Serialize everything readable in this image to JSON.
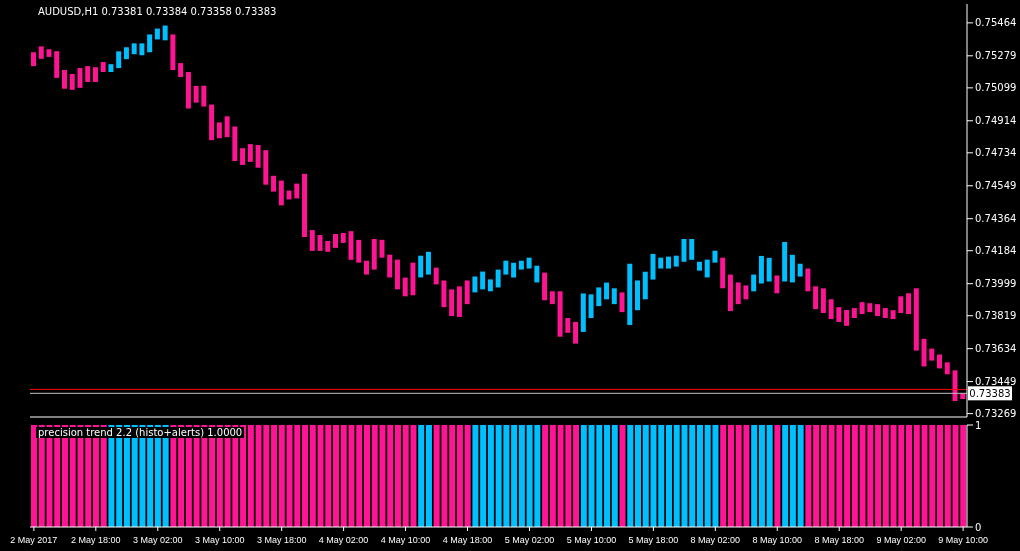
{
  "chart_data": [
    {
      "type": "bar",
      "title": "AUDUSD,H1  0.73381 0.73384 0.73358 0.73383",
      "categories": [
        null,
        null,
        null,
        null,
        null,
        null,
        null,
        null,
        null,
        null,
        null,
        null,
        null,
        null,
        null,
        null,
        null,
        null,
        null,
        null,
        null,
        null,
        null,
        null,
        null,
        null,
        null,
        null,
        null,
        null,
        null,
        null,
        null,
        null,
        null,
        null,
        null,
        null,
        null,
        null,
        null,
        null,
        null,
        null,
        null,
        null,
        null,
        null,
        null,
        null,
        null,
        null,
        null,
        null,
        null,
        null,
        null,
        null,
        null,
        null,
        null,
        null,
        null,
        null,
        null,
        null,
        null,
        null,
        null,
        null,
        null,
        null,
        null,
        null,
        null,
        null,
        null,
        null,
        null,
        null,
        null,
        null,
        null,
        null,
        null,
        null,
        null,
        null,
        null,
        null,
        null,
        null,
        null,
        null,
        null,
        null,
        null,
        null,
        null,
        null,
        null,
        null,
        null,
        null,
        null,
        null,
        null,
        null,
        null,
        null,
        null,
        null,
        null,
        null,
        null,
        null,
        null,
        null,
        null,
        null,
        null
      ],
      "base": [
        0.75221,
        0.75262,
        0.75273,
        0.75155,
        0.75094,
        0.75088,
        0.75099,
        0.75132,
        0.75132,
        0.75188,
        0.75188,
        0.7521,
        0.7526,
        0.75288,
        0.75282,
        0.75299,
        0.75371,
        0.75366,
        0.75199,
        0.7516,
        0.74983,
        0.75016,
        0.74994,
        0.74805,
        0.74816,
        0.74822,
        0.74688,
        0.74666,
        0.74683,
        0.7465,
        0.74555,
        0.74516,
        0.74439,
        0.74472,
        0.74478,
        0.74261,
        0.74183,
        0.74183,
        0.74178,
        0.742,
        0.74228,
        0.74133,
        0.74117,
        0.7405,
        0.74078,
        0.74145,
        0.74034,
        0.73967,
        0.73928,
        0.73934,
        0.74034,
        0.7405,
        0.73995,
        0.73867,
        0.73817,
        0.73812,
        0.73884,
        0.7395,
        0.73967,
        0.73956,
        0.73978,
        0.7405,
        0.74034,
        0.74078,
        0.74084,
        0.74006,
        0.73906,
        0.73884,
        0.73701,
        0.73723,
        0.73662,
        0.73728,
        0.73806,
        0.73873,
        0.73911,
        0.73884,
        0.73839,
        0.73767,
        0.7385,
        0.73911,
        0.74022,
        0.74084,
        0.74084,
        0.74095,
        0.74122,
        0.74133,
        0.74072,
        0.74034,
        0.74117,
        0.73973,
        0.73845,
        0.73884,
        0.73911,
        0.73956,
        0.74,
        0.74011,
        0.73945,
        0.74011,
        0.74006,
        0.74039,
        0.73956,
        0.73856,
        0.73834,
        0.738,
        0.73784,
        0.73762,
        0.73806,
        0.73828,
        0.73839,
        0.73817,
        0.73806,
        0.738,
        0.73834,
        0.73828,
        0.73623,
        0.73534,
        0.73567,
        0.73523,
        0.7349,
        0.7334,
        0.73351
      ],
      "values": [
        0.00078,
        0.0007,
        0.00043,
        0.0015,
        0.00105,
        0.00089,
        0.00111,
        0.00089,
        0.00083,
        0.00056,
        0.00044,
        0.00094,
        0.00067,
        0.00061,
        0.00067,
        0.001,
        0.00061,
        0.00083,
        0.002,
        0.00078,
        0.00205,
        0.00094,
        0.00117,
        0.002,
        0.00089,
        0.00117,
        0.00194,
        0.00094,
        0.001,
        0.00128,
        0.00194,
        0.00089,
        0.00139,
        0.0005,
        0.00083,
        0.00355,
        0.00117,
        0.00089,
        0.00061,
        0.00078,
        0.00056,
        0.00161,
        0.00128,
        0.00078,
        0.00172,
        0.001,
        0.00128,
        0.00167,
        0.00105,
        0.00183,
        0.00122,
        0.00128,
        0.00094,
        0.0015,
        0.0015,
        0.00172,
        0.00133,
        0.00089,
        0.001,
        0.00067,
        0.001,
        0.00078,
        0.00083,
        0.0005,
        0.00061,
        0.00094,
        0.00155,
        0.00072,
        0.00255,
        0.00083,
        0.00122,
        0.00216,
        0.00133,
        0.00105,
        0.00094,
        0.00089,
        0.00111,
        0.00344,
        0.00167,
        0.00155,
        0.00144,
        0.00061,
        0.00067,
        0.00061,
        0.00128,
        0.00117,
        0.0005,
        0.001,
        0.00067,
        0.00172,
        0.00205,
        0.00122,
        0.00078,
        0.00094,
        0.00155,
        0.00133,
        0.001,
        0.00222,
        0.00155,
        0.00072,
        0.00128,
        0.00128,
        0.00139,
        0.00111,
        0.00083,
        0.00089,
        0.00056,
        0.00067,
        0.0005,
        0.00067,
        0.00056,
        0.0005,
        0.00094,
        0.00117,
        0.0035,
        0.00155,
        0.00067,
        0.00078,
        0.00067,
        0.00172,
        0.00033
      ],
      "colors": [
        "#ff1493",
        "#ff1493",
        "#ff1493",
        "#ff1493",
        "#ff1493",
        "#ff1493",
        "#ff1493",
        "#ff1493",
        "#ff1493",
        "#ff1493",
        "#00bfff",
        "#00bfff",
        "#00bfff",
        "#00bfff",
        "#00bfff",
        "#00bfff",
        "#00bfff",
        "#00bfff",
        "#ff1493",
        "#ff1493",
        "#ff1493",
        "#ff1493",
        "#ff1493",
        "#ff1493",
        "#ff1493",
        "#ff1493",
        "#ff1493",
        "#ff1493",
        "#ff1493",
        "#ff1493",
        "#ff1493",
        "#ff1493",
        "#ff1493",
        "#ff1493",
        "#ff1493",
        "#ff1493",
        "#ff1493",
        "#ff1493",
        "#ff1493",
        "#ff1493",
        "#ff1493",
        "#ff1493",
        "#ff1493",
        "#ff1493",
        "#ff1493",
        "#ff1493",
        "#ff1493",
        "#ff1493",
        "#ff1493",
        "#ff1493",
        "#00bfff",
        "#00bfff",
        "#ff1493",
        "#ff1493",
        "#ff1493",
        "#ff1493",
        "#ff1493",
        "#00bfff",
        "#00bfff",
        "#00bfff",
        "#00bfff",
        "#00bfff",
        "#00bfff",
        "#00bfff",
        "#00bfff",
        "#00bfff",
        "#ff1493",
        "#ff1493",
        "#ff1493",
        "#ff1493",
        "#ff1493",
        "#00bfff",
        "#00bfff",
        "#00bfff",
        "#00bfff",
        "#00bfff",
        "#ff1493",
        "#00bfff",
        "#00bfff",
        "#00bfff",
        "#00bfff",
        "#00bfff",
        "#00bfff",
        "#00bfff",
        "#00bfff",
        "#00bfff",
        "#00bfff",
        "#00bfff",
        "#00bfff",
        "#ff1493",
        "#ff1493",
        "#ff1493",
        "#ff1493",
        "#00bfff",
        "#00bfff",
        "#00bfff",
        "#ff1493",
        "#00bfff",
        "#00bfff",
        "#00bfff",
        "#ff1493",
        "#ff1493",
        "#ff1493",
        "#ff1493",
        "#ff1493",
        "#ff1493",
        "#ff1493",
        "#ff1493",
        "#ff1493",
        "#ff1493",
        "#ff1493",
        "#ff1493",
        "#ff1493",
        "#ff1493",
        "#ff1493",
        "#ff1493",
        "#ff1493",
        "#ff1493",
        "#ff1493",
        "#ff1493",
        "#ff1493"
      ],
      "ylim": [
        0.7325,
        0.7557
      ],
      "yticks": [
        0.75464,
        0.75279,
        0.75099,
        0.74914,
        0.74734,
        0.74549,
        0.74364,
        0.74184,
        0.73999,
        0.73819,
        0.73634,
        0.73449,
        0.73269
      ],
      "ref_lines": [
        {
          "axis": "y",
          "value": 0.73405,
          "color": "#ff0000"
        },
        {
          "axis": "y",
          "value": 0.73383,
          "label": "0.73383",
          "color": "#c0c0c0"
        }
      ],
      "tick_labels": "y"
    },
    {
      "type": "bar",
      "title": "precision trend 2.2 (histo+alerts) 1.0000",
      "categories": [
        "2 May 2017",
        null,
        null,
        null,
        null,
        null,
        null,
        null,
        "2 May 18:00",
        null,
        null,
        null,
        null,
        null,
        null,
        null,
        "3 May 02:00",
        null,
        null,
        null,
        null,
        null,
        null,
        null,
        "3 May 10:00",
        null,
        null,
        null,
        null,
        null,
        null,
        null,
        "3 May 18:00",
        null,
        null,
        null,
        null,
        null,
        null,
        null,
        "4 May 02:00",
        null,
        null,
        null,
        null,
        null,
        null,
        null,
        "4 May 10:00",
        null,
        null,
        null,
        null,
        null,
        null,
        null,
        "4 May 18:00",
        null,
        null,
        null,
        null,
        null,
        null,
        null,
        "5 May 02:00",
        null,
        null,
        null,
        null,
        null,
        null,
        null,
        "5 May 10:00",
        null,
        null,
        null,
        null,
        null,
        null,
        null,
        "5 May 18:00",
        null,
        null,
        null,
        null,
        null,
        null,
        null,
        "8 May 02:00",
        null,
        null,
        null,
        null,
        null,
        null,
        null,
        "8 May 10:00",
        null,
        null,
        null,
        null,
        null,
        null,
        null,
        "8 May 18:00",
        null,
        null,
        null,
        null,
        null,
        null,
        null,
        "9 May 02:00",
        null,
        null,
        null,
        null,
        null,
        null,
        null,
        "9 May 10:00"
      ],
      "values": [
        1,
        1,
        1,
        1,
        1,
        1,
        1,
        1,
        1,
        1,
        1,
        1,
        1,
        1,
        1,
        1,
        1,
        1,
        1,
        1,
        1,
        1,
        1,
        1,
        1,
        1,
        1,
        1,
        1,
        1,
        1,
        1,
        1,
        1,
        1,
        1,
        1,
        1,
        1,
        1,
        1,
        1,
        1,
        1,
        1,
        1,
        1,
        1,
        1,
        1,
        1,
        1,
        1,
        1,
        1,
        1,
        1,
        1,
        1,
        1,
        1,
        1,
        1,
        1,
        1,
        1,
        1,
        1,
        1,
        1,
        1,
        1,
        1,
        1,
        1,
        1,
        1,
        1,
        1,
        1,
        1,
        1,
        1,
        1,
        1,
        1,
        1,
        1,
        1,
        1,
        1,
        1,
        1,
        1,
        1,
        1,
        1,
        1,
        1,
        1,
        1,
        1,
        1,
        1,
        1,
        1,
        1,
        1,
        1,
        1,
        1,
        1,
        1,
        1,
        1,
        1,
        1,
        1,
        1,
        1,
        1
      ],
      "colors": [
        "#ff1493",
        "#ff1493",
        "#ff1493",
        "#ff1493",
        "#ff1493",
        "#ff1493",
        "#ff1493",
        "#ff1493",
        "#ff1493",
        "#ff1493",
        "#00bfff",
        "#00bfff",
        "#00bfff",
        "#00bfff",
        "#00bfff",
        "#00bfff",
        "#00bfff",
        "#00bfff",
        "#ff1493",
        "#ff1493",
        "#ff1493",
        "#ff1493",
        "#ff1493",
        "#ff1493",
        "#ff1493",
        "#ff1493",
        "#ff1493",
        "#ff1493",
        "#ff1493",
        "#ff1493",
        "#ff1493",
        "#ff1493",
        "#ff1493",
        "#ff1493",
        "#ff1493",
        "#ff1493",
        "#ff1493",
        "#ff1493",
        "#ff1493",
        "#ff1493",
        "#ff1493",
        "#ff1493",
        "#ff1493",
        "#ff1493",
        "#ff1493",
        "#ff1493",
        "#ff1493",
        "#ff1493",
        "#ff1493",
        "#ff1493",
        "#00bfff",
        "#00bfff",
        "#ff1493",
        "#ff1493",
        "#ff1493",
        "#ff1493",
        "#ff1493",
        "#00bfff",
        "#00bfff",
        "#00bfff",
        "#00bfff",
        "#00bfff",
        "#00bfff",
        "#00bfff",
        "#00bfff",
        "#00bfff",
        "#ff1493",
        "#ff1493",
        "#ff1493",
        "#ff1493",
        "#ff1493",
        "#00bfff",
        "#00bfff",
        "#00bfff",
        "#00bfff",
        "#00bfff",
        "#ff1493",
        "#00bfff",
        "#00bfff",
        "#00bfff",
        "#00bfff",
        "#00bfff",
        "#00bfff",
        "#00bfff",
        "#00bfff",
        "#00bfff",
        "#00bfff",
        "#00bfff",
        "#00bfff",
        "#ff1493",
        "#ff1493",
        "#ff1493",
        "#ff1493",
        "#00bfff",
        "#00bfff",
        "#00bfff",
        "#ff1493",
        "#00bfff",
        "#00bfff",
        "#00bfff",
        "#ff1493",
        "#ff1493",
        "#ff1493",
        "#ff1493",
        "#ff1493",
        "#ff1493",
        "#ff1493",
        "#ff1493",
        "#ff1493",
        "#ff1493",
        "#ff1493",
        "#ff1493",
        "#ff1493",
        "#ff1493",
        "#ff1493",
        "#ff1493",
        "#ff1493",
        "#ff1493",
        "#ff1493",
        "#ff1493",
        "#ff1493"
      ],
      "ylim": [
        0,
        1
      ],
      "yticks": [
        0,
        1
      ]
    }
  ]
}
